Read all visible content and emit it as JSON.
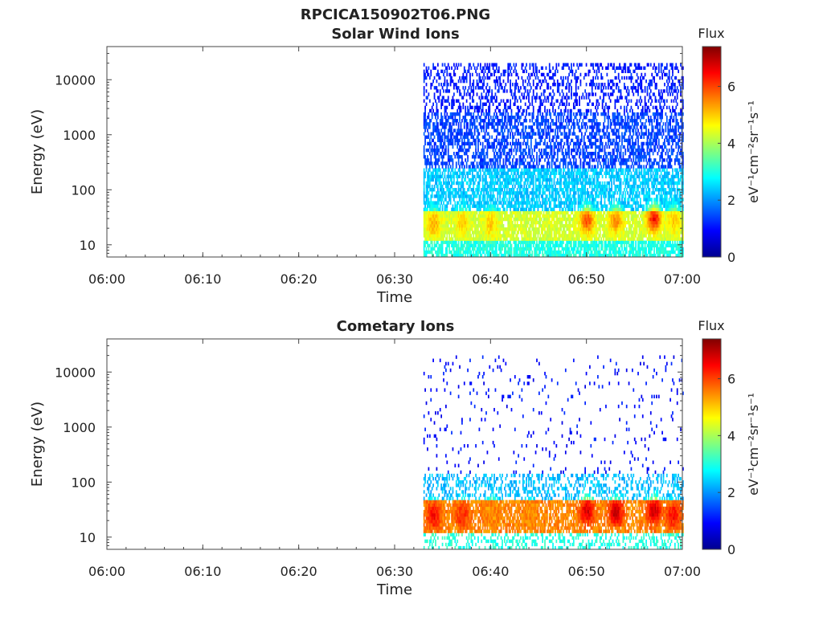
{
  "figure": {
    "title": "RPCICA150902T06.PNG"
  },
  "chart_data": [
    {
      "type": "heatmap",
      "title": "Solar Wind Ions",
      "xlabel": "Time",
      "ylabel": "Energy (eV)",
      "x_ticks": [
        "06:00",
        "06:10",
        "06:20",
        "06:30",
        "06:40",
        "06:50",
        "07:00"
      ],
      "xlim": [
        "06:00",
        "07:00"
      ],
      "y_scale": "log",
      "y_ticks": [
        10,
        100,
        1000,
        10000
      ],
      "ylim": [
        6,
        40000
      ],
      "colorbar": {
        "label": "Flux",
        "unit": "eV⁻¹cm⁻²sr⁻¹s⁻¹",
        "ticks": [
          0,
          2,
          4,
          6
        ],
        "range": [
          0,
          7.4
        ],
        "colormap": "jet"
      },
      "data_start": "06:33",
      "data_end": "07:00",
      "bands": [
        {
          "e_min": 6,
          "e_max": 12,
          "flux": 3.0,
          "density": 0.8
        },
        {
          "e_min": 12,
          "e_max": 40,
          "flux": 4.3,
          "density": 0.85
        },
        {
          "e_min": 40,
          "e_max": 250,
          "flux": 2.4,
          "density": 0.7
        },
        {
          "e_min": 250,
          "e_max": 2500,
          "flux": 1.4,
          "density": 0.55
        },
        {
          "e_min": 2500,
          "e_max": 20000,
          "flux": 1.1,
          "density": 0.35
        }
      ],
      "hotspots": [
        {
          "time": "06:34",
          "energy": 25,
          "flux": 5.3
        },
        {
          "time": "06:37",
          "energy": 25,
          "flux": 5.0
        },
        {
          "time": "06:40",
          "energy": 25,
          "flux": 5.0
        },
        {
          "time": "06:50",
          "energy": 28,
          "flux": 6.0
        },
        {
          "time": "06:53",
          "energy": 28,
          "flux": 5.5
        },
        {
          "time": "06:57",
          "energy": 30,
          "flux": 6.5
        },
        {
          "time": "06:59",
          "energy": 28,
          "flux": 5.0
        }
      ]
    },
    {
      "type": "heatmap",
      "title": "Cometary Ions",
      "xlabel": "Time",
      "ylabel": "Energy (eV)",
      "x_ticks": [
        "06:00",
        "06:10",
        "06:20",
        "06:30",
        "06:40",
        "06:50",
        "07:00"
      ],
      "xlim": [
        "06:00",
        "07:00"
      ],
      "y_scale": "log",
      "y_ticks": [
        10,
        100,
        1000,
        10000
      ],
      "ylim": [
        6,
        40000
      ],
      "colorbar": {
        "label": "Flux",
        "unit": "eV⁻¹cm⁻²sr⁻¹s⁻¹",
        "ticks": [
          0,
          2,
          4,
          6
        ],
        "range": [
          0,
          7.4
        ],
        "colormap": "jet"
      },
      "data_start": "06:33",
      "data_end": "07:00",
      "bands": [
        {
          "e_min": 6,
          "e_max": 12,
          "flux": 3.0,
          "density": 0.35
        },
        {
          "e_min": 12,
          "e_max": 45,
          "flux": 5.5,
          "density": 0.7
        },
        {
          "e_min": 45,
          "e_max": 150,
          "flux": 2.3,
          "density": 0.35
        },
        {
          "e_min": 150,
          "e_max": 20000,
          "flux": 1.0,
          "density": 0.04
        }
      ],
      "hotspots": [
        {
          "time": "06:34",
          "energy": 25,
          "flux": 6.5
        },
        {
          "time": "06:37",
          "energy": 25,
          "flux": 6.2
        },
        {
          "time": "06:40",
          "energy": 28,
          "flux": 5.5
        },
        {
          "time": "06:44",
          "energy": 25,
          "flux": 5.0
        },
        {
          "time": "06:50",
          "energy": 30,
          "flux": 6.8
        },
        {
          "time": "06:53",
          "energy": 28,
          "flux": 7.0
        },
        {
          "time": "06:57",
          "energy": 30,
          "flux": 6.9
        },
        {
          "time": "06:59",
          "energy": 25,
          "flux": 6.5
        }
      ]
    }
  ]
}
